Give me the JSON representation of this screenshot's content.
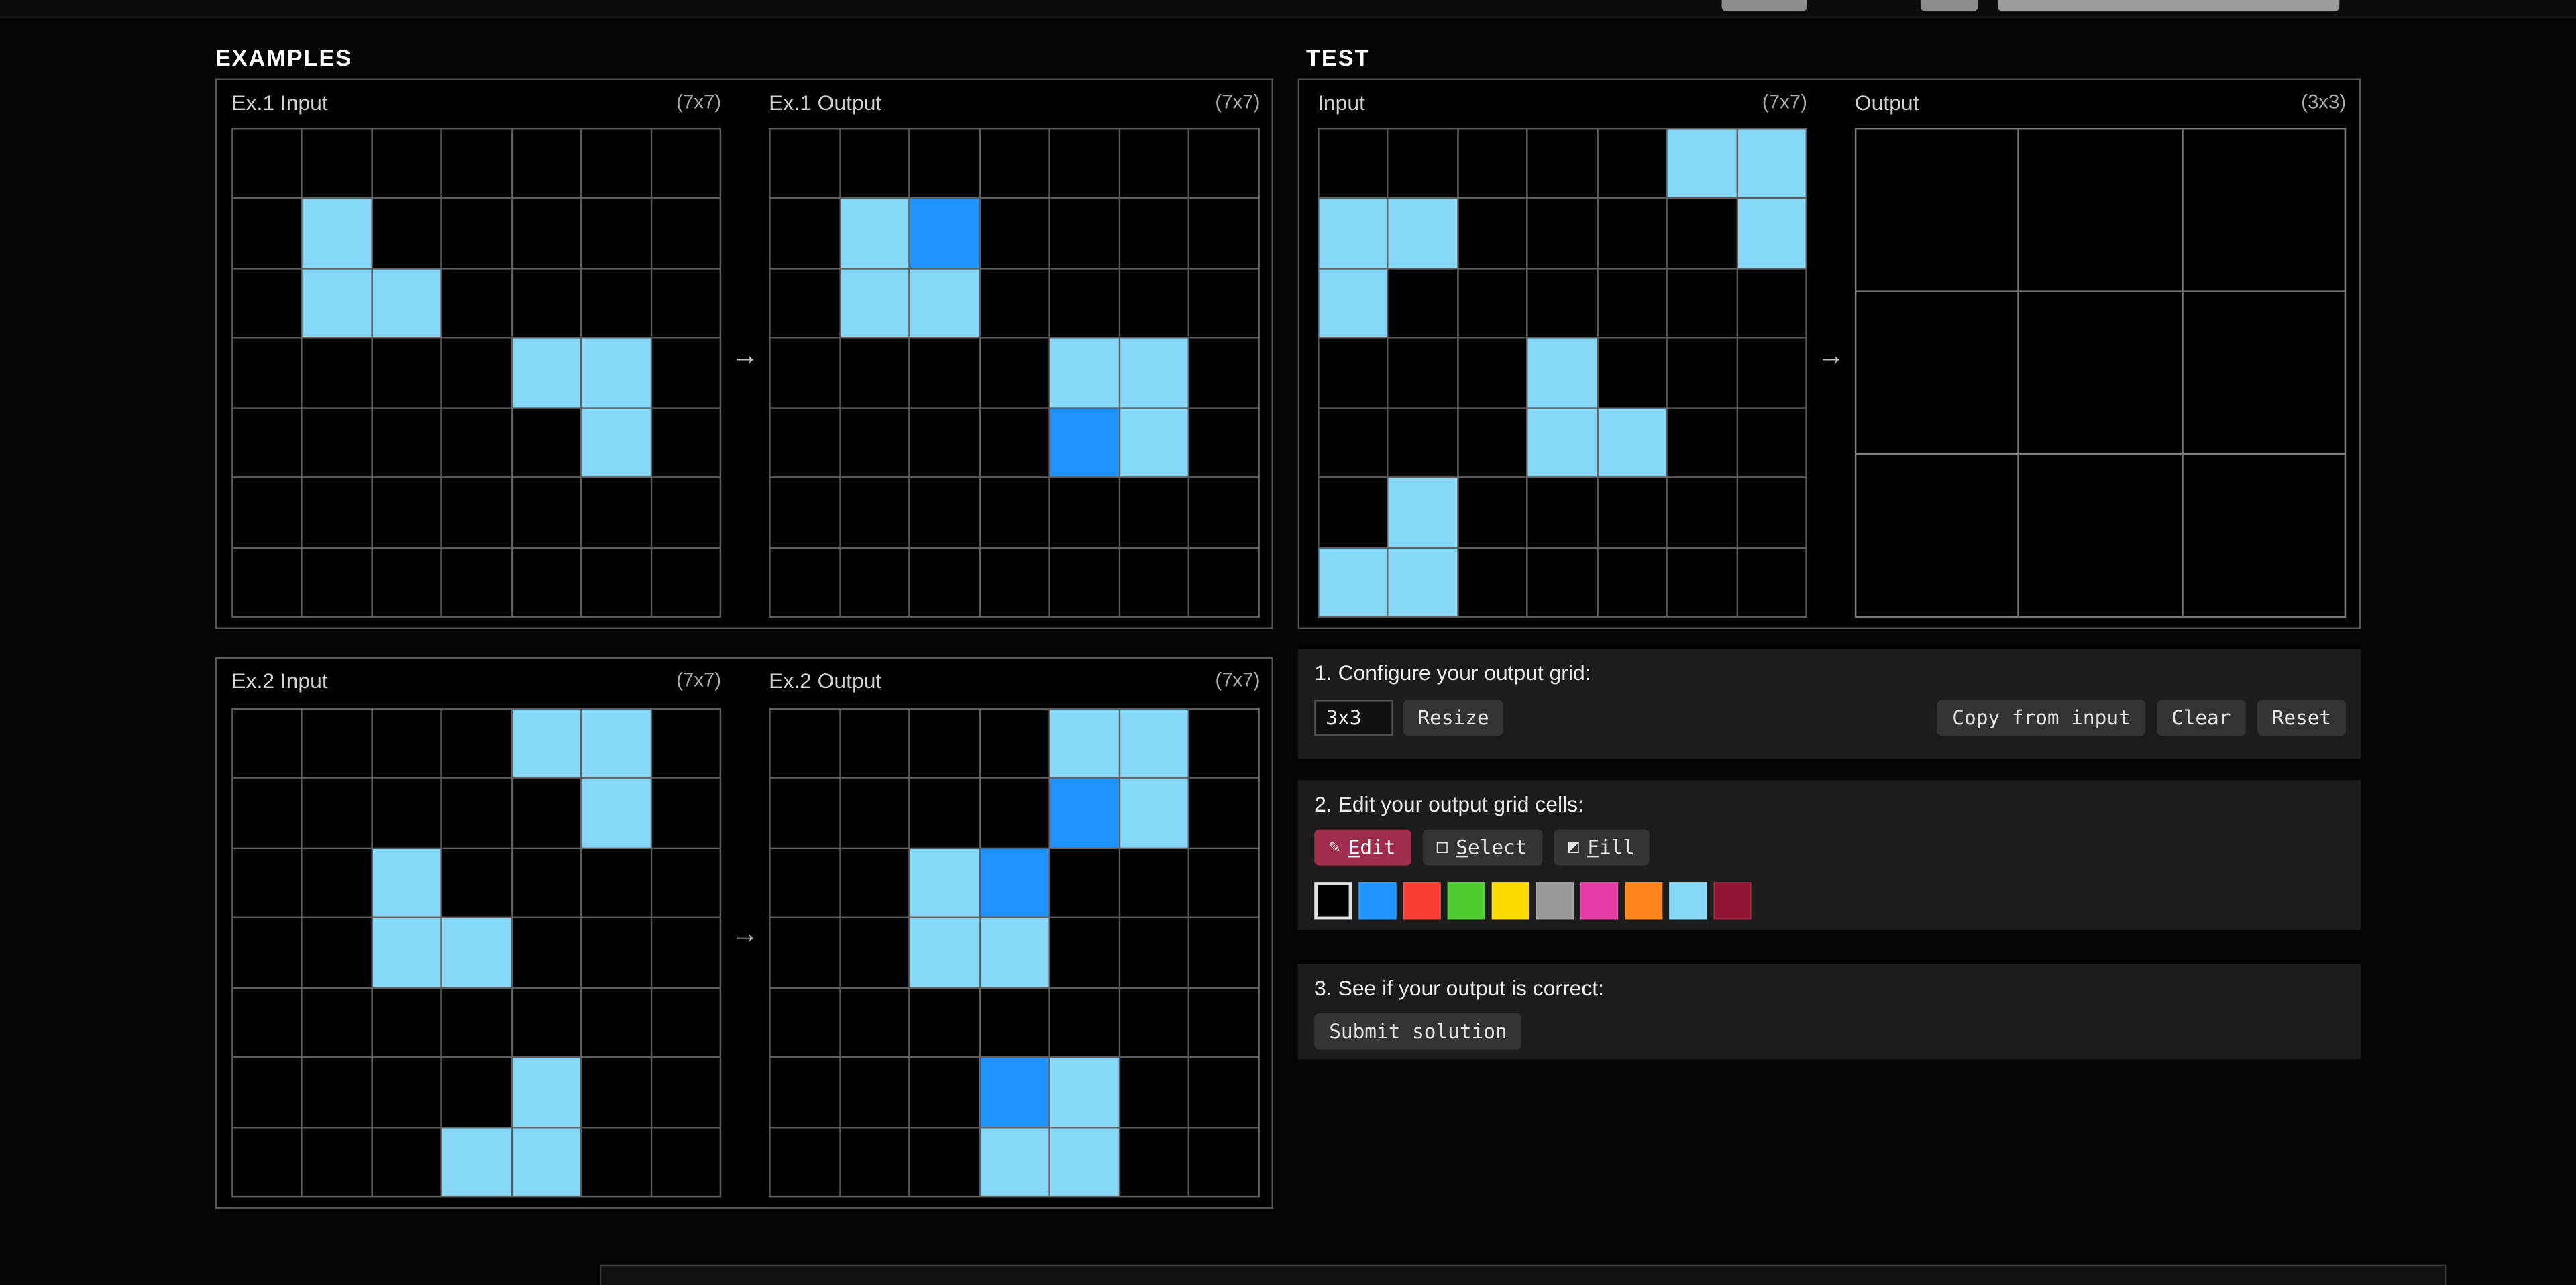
{
  "palette": [
    "#000000",
    "#1E93FF",
    "#F93C31",
    "#4FCC30",
    "#FFDC00",
    "#999999",
    "#E53AA3",
    "#FF851B",
    "#87D8F8",
    "#921231"
  ],
  "examples": {
    "section_title": "EXAMPLES",
    "arrow": "→",
    "pairs": [
      {
        "input_label": "Ex.1 Input",
        "input_dims": "(7x7)",
        "output_label": "Ex.1 Output",
        "output_dims": "(7x7)",
        "input_grid": [
          [
            0,
            0,
            0,
            0,
            0,
            0,
            0
          ],
          [
            0,
            8,
            0,
            0,
            0,
            0,
            0
          ],
          [
            0,
            8,
            8,
            0,
            0,
            0,
            0
          ],
          [
            0,
            0,
            0,
            0,
            8,
            8,
            0
          ],
          [
            0,
            0,
            0,
            0,
            0,
            8,
            0
          ],
          [
            0,
            0,
            0,
            0,
            0,
            0,
            0
          ],
          [
            0,
            0,
            0,
            0,
            0,
            0,
            0
          ]
        ],
        "output_grid": [
          [
            0,
            0,
            0,
            0,
            0,
            0,
            0
          ],
          [
            0,
            8,
            1,
            0,
            0,
            0,
            0
          ],
          [
            0,
            8,
            8,
            0,
            0,
            0,
            0
          ],
          [
            0,
            0,
            0,
            0,
            8,
            8,
            0
          ],
          [
            0,
            0,
            0,
            0,
            1,
            8,
            0
          ],
          [
            0,
            0,
            0,
            0,
            0,
            0,
            0
          ],
          [
            0,
            0,
            0,
            0,
            0,
            0,
            0
          ]
        ]
      },
      {
        "input_label": "Ex.2 Input",
        "input_dims": "(7x7)",
        "output_label": "Ex.2 Output",
        "output_dims": "(7x7)",
        "input_grid": [
          [
            0,
            0,
            0,
            0,
            8,
            8,
            0
          ],
          [
            0,
            0,
            0,
            0,
            0,
            8,
            0
          ],
          [
            0,
            0,
            8,
            0,
            0,
            0,
            0
          ],
          [
            0,
            0,
            8,
            8,
            0,
            0,
            0
          ],
          [
            0,
            0,
            0,
            0,
            0,
            0,
            0
          ],
          [
            0,
            0,
            0,
            0,
            8,
            0,
            0
          ],
          [
            0,
            0,
            0,
            8,
            8,
            0,
            0
          ]
        ],
        "output_grid": [
          [
            0,
            0,
            0,
            0,
            8,
            8,
            0
          ],
          [
            0,
            0,
            0,
            0,
            1,
            8,
            0
          ],
          [
            0,
            0,
            8,
            1,
            0,
            0,
            0
          ],
          [
            0,
            0,
            8,
            8,
            0,
            0,
            0
          ],
          [
            0,
            0,
            0,
            0,
            0,
            0,
            0
          ],
          [
            0,
            0,
            0,
            1,
            8,
            0,
            0
          ],
          [
            0,
            0,
            0,
            8,
            8,
            0,
            0
          ]
        ]
      }
    ]
  },
  "test": {
    "section_title": "TEST",
    "arrow": "→",
    "input_label": "Input",
    "input_dims": "(7x7)",
    "output_label": "Output",
    "output_dims": "(3x3)",
    "input_grid": [
      [
        0,
        0,
        0,
        0,
        0,
        8,
        8
      ],
      [
        8,
        8,
        0,
        0,
        0,
        0,
        8
      ],
      [
        8,
        0,
        0,
        0,
        0,
        0,
        0
      ],
      [
        0,
        0,
        0,
        8,
        0,
        0,
        0
      ],
      [
        0,
        0,
        0,
        8,
        8,
        0,
        0
      ],
      [
        0,
        8,
        0,
        0,
        0,
        0,
        0
      ],
      [
        8,
        8,
        0,
        0,
        0,
        0,
        0
      ]
    ],
    "output_grid": [
      [
        0,
        0,
        0
      ],
      [
        0,
        0,
        0
      ],
      [
        0,
        0,
        0
      ]
    ]
  },
  "controls": {
    "step1": {
      "label": "1. Configure your output grid:",
      "size_value": "3x3",
      "resize_label": "Resize",
      "copy_label": "Copy from input",
      "clear_label": "Clear",
      "reset_label": "Reset"
    },
    "step2": {
      "label": "2. Edit your output grid cells:",
      "tools": [
        {
          "name": "edit",
          "label": "Edit",
          "icon": "✎",
          "active": true
        },
        {
          "name": "select",
          "label": "Select",
          "icon": "□",
          "active": false
        },
        {
          "name": "fill",
          "label": "Fill",
          "icon": "◩",
          "active": false
        }
      ],
      "colors": [
        "#000000",
        "#1E93FF",
        "#F93C31",
        "#4FCC30",
        "#FFDC00",
        "#999999",
        "#E53AA3",
        "#FF851B",
        "#87D8F8",
        "#921231"
      ],
      "selected_color_index": 0
    },
    "step3": {
      "label": "3. See if your output is correct:",
      "submit_label": "Submit solution"
    }
  }
}
